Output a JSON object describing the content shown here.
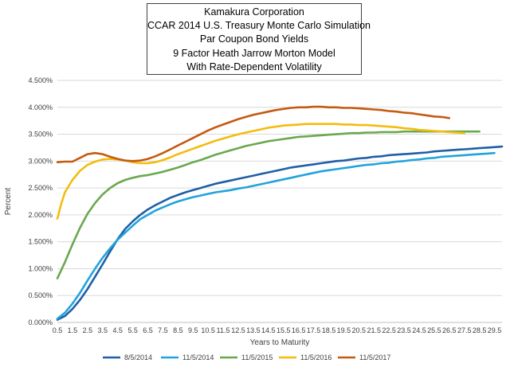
{
  "chart_data": {
    "type": "line",
    "title_lines": [
      "Kamakura Corporation",
      "CCAR 2014 U.S. Treasury Monte Carlo Simulation",
      "Par Coupon Bond Yields",
      "9 Factor Heath Jarrow Morton Model",
      "With Rate-Dependent Volatility"
    ],
    "xlabel": "Years to Maturity",
    "ylabel": "Percent",
    "xlim": [
      0.5,
      30
    ],
    "ylim": [
      0,
      4.5
    ],
    "x_ticks": [
      "0.5",
      "1.5",
      "2.5",
      "3.5",
      "4.5",
      "5.5",
      "6.5",
      "7.5",
      "8.5",
      "9.5",
      "10.5",
      "11.5",
      "12.5",
      "13.5",
      "14.5",
      "15.5",
      "16.5",
      "17.5",
      "18.5",
      "19.5",
      "20.5",
      "21.5",
      "22.5",
      "23.5",
      "24.5",
      "25.5",
      "26.5",
      "27.5",
      "28.5",
      "29.5"
    ],
    "y_ticks": [
      "0.000%",
      "0.500%",
      "1.000%",
      "1.500%",
      "2.000%",
      "2.500%",
      "3.000%",
      "3.500%",
      "4.000%",
      "4.500%"
    ],
    "grid": true,
    "legend_position": "bottom",
    "series": [
      {
        "name": "8/5/2014",
        "color": "#1F5FA6",
        "x": [
          0.5,
          1,
          1.5,
          2,
          2.5,
          3,
          3.5,
          4,
          4.5,
          5,
          5.5,
          6,
          6.5,
          7,
          7.5,
          8,
          8.5,
          9,
          9.5,
          10,
          10.5,
          11,
          11.5,
          12,
          12.5,
          13,
          13.5,
          14,
          14.5,
          15,
          15.5,
          16,
          16.5,
          17,
          17.5,
          18,
          18.5,
          19,
          19.5,
          20,
          20.5,
          21,
          21.5,
          22,
          22.5,
          23,
          23.5,
          24,
          24.5,
          25,
          25.5,
          26,
          26.5,
          27,
          27.5,
          28,
          28.5,
          29,
          29.5,
          30
        ],
        "values": [
          0.05,
          0.12,
          0.25,
          0.42,
          0.62,
          0.85,
          1.08,
          1.32,
          1.55,
          1.74,
          1.88,
          2.0,
          2.1,
          2.18,
          2.25,
          2.32,
          2.37,
          2.42,
          2.46,
          2.5,
          2.54,
          2.58,
          2.61,
          2.64,
          2.67,
          2.7,
          2.73,
          2.76,
          2.79,
          2.82,
          2.85,
          2.88,
          2.9,
          2.92,
          2.94,
          2.96,
          2.98,
          3.0,
          3.01,
          3.03,
          3.05,
          3.06,
          3.08,
          3.09,
          3.11,
          3.12,
          3.13,
          3.14,
          3.15,
          3.16,
          3.18,
          3.19,
          3.2,
          3.21,
          3.22,
          3.23,
          3.24,
          3.25,
          3.26,
          3.27
        ]
      },
      {
        "name": "11/5/2014",
        "color": "#21A3DC",
        "x": [
          0.5,
          1,
          1.5,
          2,
          2.5,
          3,
          3.5,
          4,
          4.5,
          5,
          5.5,
          6,
          6.5,
          7,
          7.5,
          8,
          8.5,
          9,
          9.5,
          10,
          10.5,
          11,
          11.5,
          12,
          12.5,
          13,
          13.5,
          14,
          14.5,
          15,
          15.5,
          16,
          16.5,
          17,
          17.5,
          18,
          18.5,
          19,
          19.5,
          20,
          20.5,
          21,
          21.5,
          22,
          22.5,
          23,
          23.5,
          24,
          24.5,
          25,
          25.5,
          26,
          26.5,
          27,
          27.5,
          28,
          28.5,
          29,
          29.5
        ],
        "values": [
          0.07,
          0.18,
          0.35,
          0.55,
          0.78,
          1.0,
          1.2,
          1.38,
          1.54,
          1.67,
          1.8,
          1.92,
          2.0,
          2.08,
          2.14,
          2.2,
          2.25,
          2.29,
          2.33,
          2.36,
          2.39,
          2.42,
          2.44,
          2.46,
          2.49,
          2.51,
          2.54,
          2.57,
          2.6,
          2.63,
          2.66,
          2.69,
          2.72,
          2.75,
          2.78,
          2.81,
          2.83,
          2.85,
          2.87,
          2.89,
          2.91,
          2.93,
          2.94,
          2.96,
          2.97,
          2.99,
          3.0,
          3.02,
          3.03,
          3.05,
          3.06,
          3.08,
          3.09,
          3.1,
          3.11,
          3.12,
          3.13,
          3.14,
          3.15
        ]
      },
      {
        "name": "11/5/2015",
        "color": "#6AA84F",
        "x": [
          0.5,
          1,
          1.5,
          2,
          2.5,
          3,
          3.5,
          4,
          4.5,
          5,
          5.5,
          6,
          6.5,
          7,
          7.5,
          8,
          8.5,
          9,
          9.5,
          10,
          10.5,
          11,
          11.5,
          12,
          12.5,
          13,
          13.5,
          14,
          14.5,
          15,
          15.5,
          16,
          16.5,
          17,
          17.5,
          18,
          18.5,
          19,
          19.5,
          20,
          20.5,
          21,
          21.5,
          22,
          22.5,
          23,
          23.5,
          24,
          24.5,
          25,
          25.5,
          26,
          26.5,
          27,
          27.5,
          28,
          28.5
        ],
        "values": [
          0.82,
          1.12,
          1.45,
          1.76,
          2.02,
          2.22,
          2.38,
          2.5,
          2.59,
          2.65,
          2.69,
          2.72,
          2.74,
          2.77,
          2.8,
          2.84,
          2.88,
          2.93,
          2.98,
          3.02,
          3.07,
          3.12,
          3.16,
          3.2,
          3.24,
          3.28,
          3.31,
          3.34,
          3.37,
          3.39,
          3.41,
          3.43,
          3.45,
          3.46,
          3.47,
          3.48,
          3.49,
          3.5,
          3.51,
          3.52,
          3.52,
          3.53,
          3.53,
          3.54,
          3.54,
          3.54,
          3.55,
          3.55,
          3.55,
          3.55,
          3.55,
          3.55,
          3.55,
          3.55,
          3.55,
          3.55,
          3.55
        ]
      },
      {
        "name": "11/5/2016",
        "color": "#F4BC0E",
        "x": [
          0.5,
          0.75,
          1,
          1.5,
          2,
          2.5,
          3,
          3.5,
          4,
          4.5,
          5,
          5.5,
          6,
          6.5,
          7,
          7.5,
          8,
          8.5,
          9,
          9.5,
          10,
          10.5,
          11,
          11.5,
          12,
          12.5,
          13,
          13.5,
          14,
          14.5,
          15,
          15.5,
          16,
          16.5,
          17,
          17.5,
          18,
          18.5,
          19,
          19.5,
          20,
          20.5,
          21,
          21.5,
          22,
          22.5,
          23,
          23.5,
          24,
          24.5,
          25,
          25.5,
          26,
          26.5,
          27,
          27.5
        ],
        "values": [
          1.93,
          2.2,
          2.42,
          2.65,
          2.82,
          2.93,
          2.99,
          3.03,
          3.04,
          3.03,
          3.01,
          2.98,
          2.96,
          2.96,
          2.98,
          3.02,
          3.07,
          3.13,
          3.18,
          3.23,
          3.28,
          3.33,
          3.38,
          3.42,
          3.46,
          3.5,
          3.53,
          3.56,
          3.59,
          3.62,
          3.64,
          3.66,
          3.67,
          3.68,
          3.69,
          3.69,
          3.69,
          3.69,
          3.69,
          3.68,
          3.68,
          3.67,
          3.67,
          3.66,
          3.65,
          3.64,
          3.63,
          3.61,
          3.6,
          3.58,
          3.57,
          3.56,
          3.55,
          3.54,
          3.53,
          3.52
        ]
      },
      {
        "name": "11/5/2017",
        "color": "#C55A11",
        "x": [
          0.5,
          1,
          1.5,
          2,
          2.5,
          3,
          3.5,
          4,
          4.5,
          5,
          5.5,
          6,
          6.5,
          7,
          7.5,
          8,
          8.5,
          9,
          9.5,
          10,
          10.5,
          11,
          11.5,
          12,
          12.5,
          13,
          13.5,
          14,
          14.5,
          15,
          15.5,
          16,
          16.5,
          17,
          17.5,
          18,
          18.5,
          19,
          19.5,
          20,
          20.5,
          21,
          21.5,
          22,
          22.5,
          23,
          23.5,
          24,
          24.5,
          25,
          25.5,
          26,
          26.5
        ],
        "values": [
          2.98,
          2.99,
          2.99,
          3.06,
          3.13,
          3.15,
          3.13,
          3.08,
          3.04,
          3.01,
          3.0,
          3.01,
          3.04,
          3.09,
          3.15,
          3.22,
          3.29,
          3.36,
          3.43,
          3.5,
          3.57,
          3.63,
          3.68,
          3.73,
          3.78,
          3.82,
          3.86,
          3.89,
          3.92,
          3.95,
          3.97,
          3.99,
          4.0,
          4.0,
          4.01,
          4.01,
          4.0,
          4.0,
          3.99,
          3.99,
          3.98,
          3.97,
          3.96,
          3.95,
          3.93,
          3.92,
          3.9,
          3.89,
          3.87,
          3.85,
          3.83,
          3.82,
          3.8
        ]
      }
    ]
  }
}
